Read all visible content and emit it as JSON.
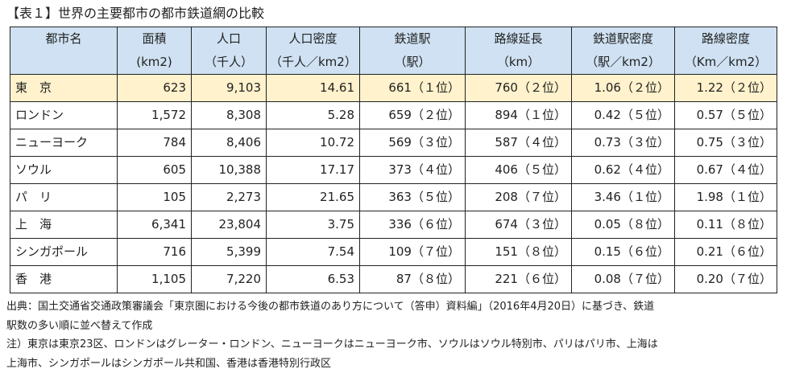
{
  "title": "【表１】世界の主要都市の都市鉄道網の比較",
  "headers": [
    {
      "top": "都市名",
      "bottom": ""
    },
    {
      "top": "面積",
      "bottom": "(km2)"
    },
    {
      "top": "人口",
      "bottom": "（千人）"
    },
    {
      "top": "人口密度",
      "bottom": "（千人／km2）"
    },
    {
      "top": "鉄道駅",
      "bottom": "（駅）"
    },
    {
      "top": "路線延長",
      "bottom": "（km）"
    },
    {
      "top": "鉄道駅密度",
      "bottom": "（駅／km2）"
    },
    {
      "top": "路線密度",
      "bottom": "（Km／km2）"
    }
  ],
  "rows": [
    {
      "city": "東　京",
      "area": "623",
      "population": "9,103",
      "pop_density": "14.61",
      "stations": "661",
      "stations_rank": "（１位）",
      "length": "760",
      "length_rank": "（２位）",
      "station_density": "1.06",
      "station_density_rank": "（２位）",
      "line_density": "1.22",
      "line_density_rank": "（２位）",
      "highlight": true
    },
    {
      "city": "ロンドン",
      "area": "1,572",
      "population": "8,308",
      "pop_density": "5.28",
      "stations": "659",
      "stations_rank": "（２位）",
      "length": "894",
      "length_rank": "（１位）",
      "station_density": "0.42",
      "station_density_rank": "（５位）",
      "line_density": "0.57",
      "line_density_rank": "（５位）",
      "highlight": false
    },
    {
      "city": "ニューヨーク",
      "area": "784",
      "population": "8,406",
      "pop_density": "10.72",
      "stations": "569",
      "stations_rank": "（３位）",
      "length": "587",
      "length_rank": "（４位）",
      "station_density": "0.73",
      "station_density_rank": "（３位）",
      "line_density": "0.75",
      "line_density_rank": "（３位）",
      "highlight": false
    },
    {
      "city": "ソウル",
      "area": "605",
      "population": "10,388",
      "pop_density": "17.17",
      "stations": "373",
      "stations_rank": "（４位）",
      "length": "406",
      "length_rank": "（５位）",
      "station_density": "0.62",
      "station_density_rank": "（４位）",
      "line_density": "0.67",
      "line_density_rank": "（４位）",
      "highlight": false
    },
    {
      "city": "パ　リ",
      "area": "105",
      "population": "2,273",
      "pop_density": "21.65",
      "stations": "363",
      "stations_rank": "（５位）",
      "length": "208",
      "length_rank": "（７位）",
      "station_density": "3.46",
      "station_density_rank": "（１位）",
      "line_density": "1.98",
      "line_density_rank": "（１位）",
      "highlight": false
    },
    {
      "city": "上　海",
      "area": "6,341",
      "population": "23,804",
      "pop_density": "3.75",
      "stations": "336",
      "stations_rank": "（６位）",
      "length": "674",
      "length_rank": "（３位）",
      "station_density": "0.05",
      "station_density_rank": "（８位）",
      "line_density": "0.11",
      "line_density_rank": "（８位）",
      "highlight": false
    },
    {
      "city": "シンガポール",
      "area": "716",
      "population": "5,399",
      "pop_density": "7.54",
      "stations": "109",
      "stations_rank": "（７位）",
      "length": "151",
      "length_rank": "（８位）",
      "station_density": "0.15",
      "station_density_rank": "（６位）",
      "line_density": "0.21",
      "line_density_rank": "（６位）",
      "highlight": false
    },
    {
      "city": "香　港",
      "area": "1,105",
      "population": "7,220",
      "pop_density": "6.53",
      "stations": "87",
      "stations_rank": "（８位）",
      "length": "221",
      "length_rank": "（６位）",
      "station_density": "0.08",
      "station_density_rank": "（７位）",
      "line_density": "0.20",
      "line_density_rank": "（７位）",
      "highlight": false
    }
  ],
  "notes": [
    "出典：国土交通省交通政策審議会「東京圏における今後の都市鉄道のあり方について（答申）資料編」（2016年4月20日）に基づき、鉄道",
    "駅数の多い順に並べ替えて作成",
    "注）東京は東京23区、ロンドンはグレーター・ロンドン、ニューヨークはニューヨーク市、ソウルはソウル特別市、パリはパリ市、上海は",
    "上海市、シンガポールはシンガポール共和国、香港は香港特別行政区"
  ],
  "colors": {
    "header_bg": "#cfe1f2",
    "highlight_bg": "#fff2cc",
    "border": "#222222"
  }
}
